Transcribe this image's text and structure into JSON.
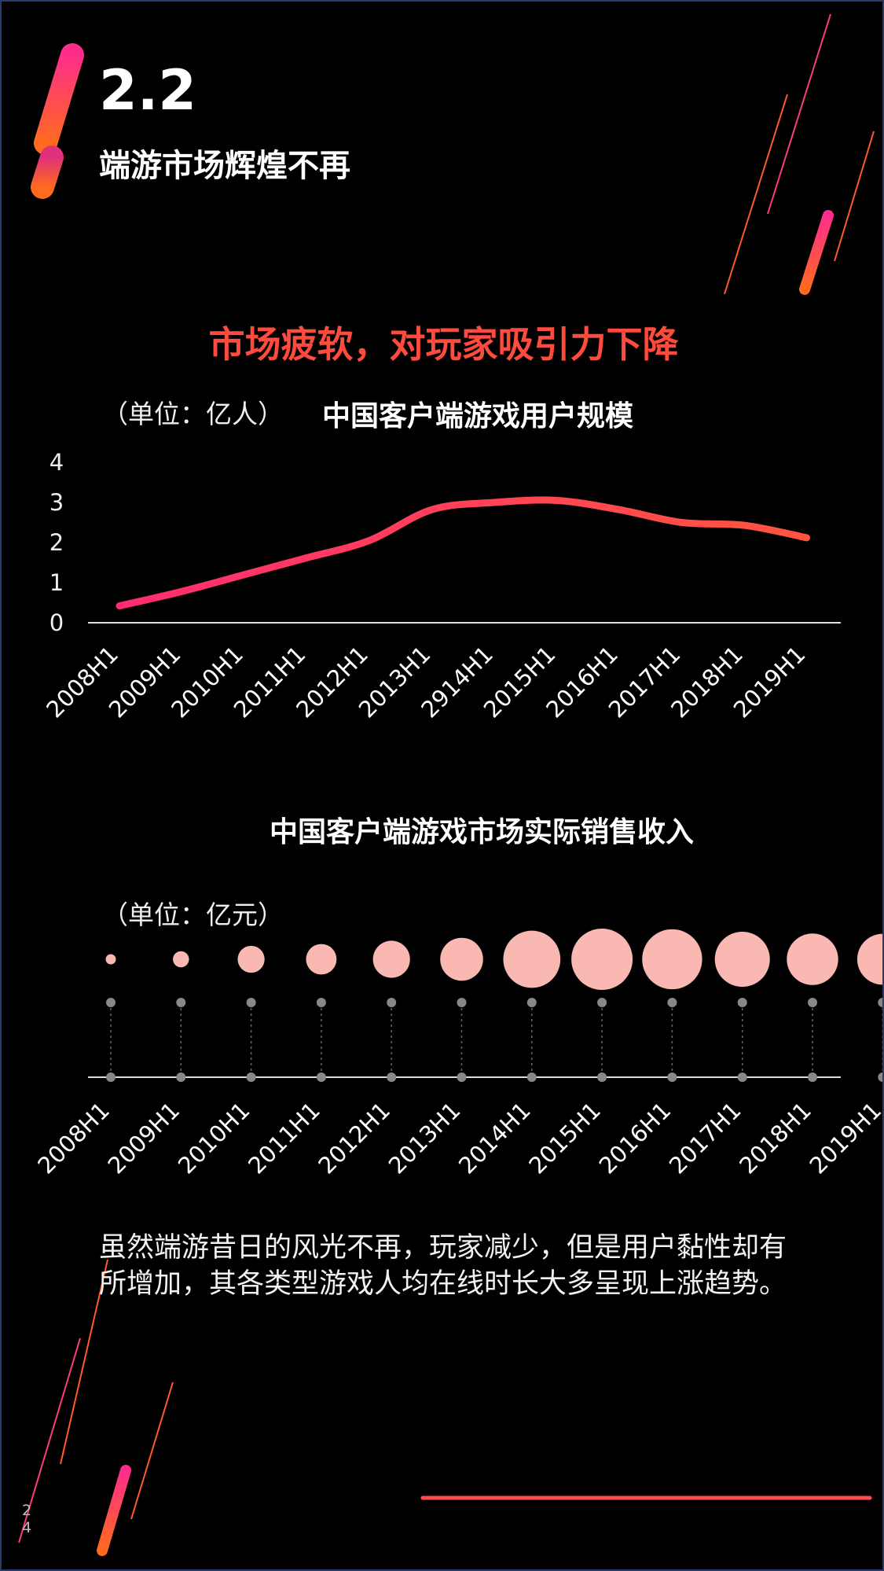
{
  "header": {
    "section_number": "2.2",
    "section_title": "端游市场辉煌不再"
  },
  "headline": "市场疲软，对玩家吸引力下降",
  "users_chart": {
    "unit_label": "（单位：亿人）",
    "title": "中国客户端游戏用户规模"
  },
  "revenue_chart": {
    "title": "中国客户端游戏市场实际销售收入",
    "unit_label": "（单位：亿元）"
  },
  "body_text": "虽然端游昔日的风光不再，玩家减少，但是用户黏性却有所增加，其各类型游戏人均在线时长大多呈现上涨趋势。",
  "page_number": "24",
  "colors": {
    "accent_red": "#ff4b3e",
    "line_start": "#ff2d70",
    "line_end": "#ff5540",
    "bubble": "#f9b8b2",
    "background": "#000000"
  },
  "chart_data": [
    {
      "type": "line",
      "title": "中国客户端游戏用户规模",
      "ylabel": "（单位：亿人）",
      "categories": [
        "2008H1",
        "2009H1",
        "2010H1",
        "2011H1",
        "2012H1",
        "2013H1",
        "2914H1",
        "2015H1",
        "2016H1",
        "2017H1",
        "2018H1",
        "2019H1"
      ],
      "values": [
        0.42,
        0.78,
        1.2,
        1.62,
        2.05,
        2.82,
        3.0,
        3.05,
        2.82,
        2.5,
        2.43,
        2.12
      ],
      "yticks": [
        0,
        1,
        2,
        3,
        4
      ],
      "ylim": [
        0,
        4
      ],
      "grid": false
    },
    {
      "type": "scatter",
      "title": "中国客户端游戏市场实际销售收入",
      "ylabel": "（单位：亿元）",
      "categories": [
        "2008H1",
        "2009H1",
        "2010H1",
        "2011H1",
        "2012H1",
        "2013H1",
        "2014H1",
        "2015H1",
        "2016H1",
        "2017H1",
        "2018H1",
        "2019H1"
      ],
      "values": [
        40,
        100,
        280,
        360,
        530,
        710,
        1260,
        1450,
        1390,
        1170,
        1020,
        1000
      ],
      "grid": false
    }
  ]
}
